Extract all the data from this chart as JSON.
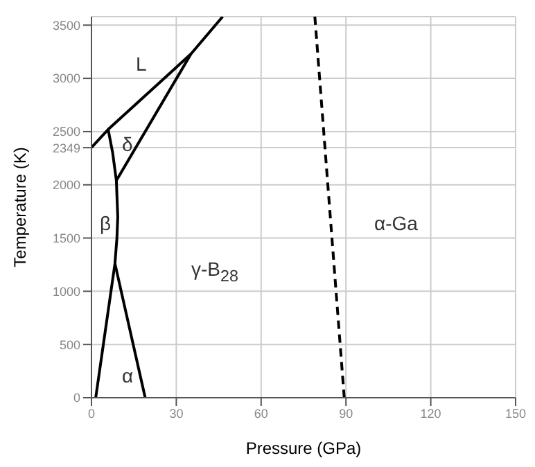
{
  "chart_data": {
    "type": "line",
    "xlabel": "Pressure (GPa)",
    "ylabel": "Temperature (K)",
    "xlim": [
      0,
      150
    ],
    "xticks": [
      0,
      30,
      60,
      90,
      120,
      150
    ],
    "ylim": [
      0,
      3580
    ],
    "yticks": [
      0,
      500,
      1000,
      1500,
      2000,
      {
        "value": 2349,
        "label": "2349"
      },
      2500,
      3000,
      3500
    ],
    "grid": true,
    "marker": "none",
    "series": [
      {
        "color": "#000000",
        "x": [
          0,
          5.9,
          35.2,
          46.4
        ],
        "values": [
          2350,
          2520,
          3230,
          3580
        ]
      },
      {
        "color": "#000000",
        "x": [
          5.9,
          7.5,
          8.8,
          9.3,
          9.0,
          8.3,
          1.5
        ],
        "values": [
          2520,
          2300,
          2040,
          1700,
          1500,
          1260,
          0
        ]
      },
      {
        "color": "#000000",
        "x": [
          8.8,
          35.2
        ],
        "values": [
          2040,
          3230
        ]
      },
      {
        "color": "#000000",
        "x": [
          8.3,
          19
        ],
        "values": [
          1260,
          0
        ]
      },
      {
        "color": "#000000",
        "x": [
          79,
          89.4
        ],
        "values": [
          3580,
          0
        ],
        "line_style": "dashed"
      }
    ],
    "annotations": [
      "L",
      "δ",
      "β",
      "γ-B$_{28}$",
      "α",
      "α-Ga"
    ]
  }
}
